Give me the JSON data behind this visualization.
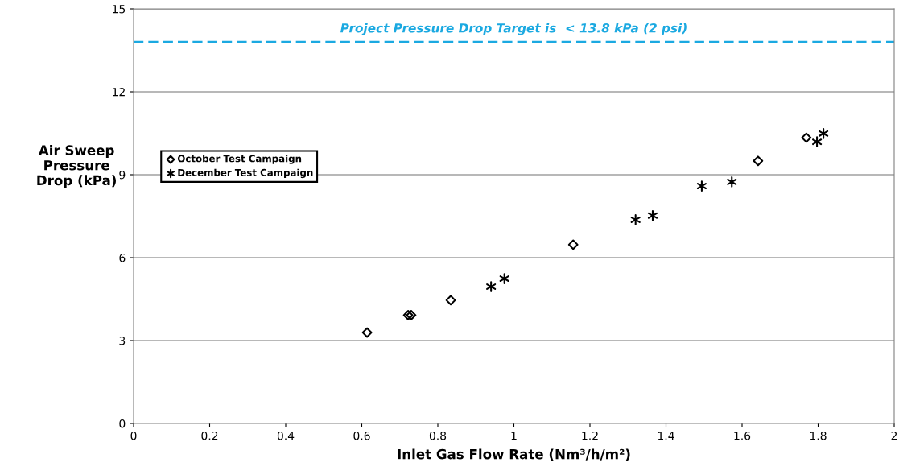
{
  "chart_data": {
    "type": "scatter",
    "xlabel": "Inlet Gas Flow Rate (Nm³/h/m²)",
    "ylabel": "Air Sweep\nPressure\nDrop (kPa)",
    "xlim": [
      0,
      2
    ],
    "xticks": [
      0,
      0.2,
      0.4,
      0.6,
      0.8,
      1,
      1.2,
      1.4,
      1.6,
      1.8,
      2
    ],
    "ylim": [
      0,
      15
    ],
    "yticks": [
      0,
      3,
      6,
      9,
      12,
      15
    ],
    "grid": "y",
    "legend": "left",
    "series": [
      {
        "name": "October Test Campaign",
        "color": "#000000",
        "marker": "diamond",
        "x": [
          0.614,
          0.722,
          0.73,
          0.834,
          1.156,
          1.642,
          1.769
        ],
        "values": [
          3.29,
          3.92,
          3.92,
          4.46,
          6.47,
          9.5,
          10.34
        ]
      },
      {
        "name": "December Test Campaign",
        "color": "#000000",
        "marker": "cross",
        "x": [
          0.94,
          0.975,
          1.32,
          1.365,
          1.494,
          1.573,
          1.797,
          1.814
        ],
        "values": [
          4.95,
          5.24,
          7.37,
          7.52,
          8.59,
          8.74,
          10.19,
          10.49
        ]
      }
    ],
    "ref_lines": [
      {
        "axis": "y",
        "value": 13.8,
        "label": "Project Pressure Drop Target is  < 13.8 kPa (2 psi)",
        "color": "#1ba9e1",
        "line_style": "dashed"
      }
    ]
  }
}
